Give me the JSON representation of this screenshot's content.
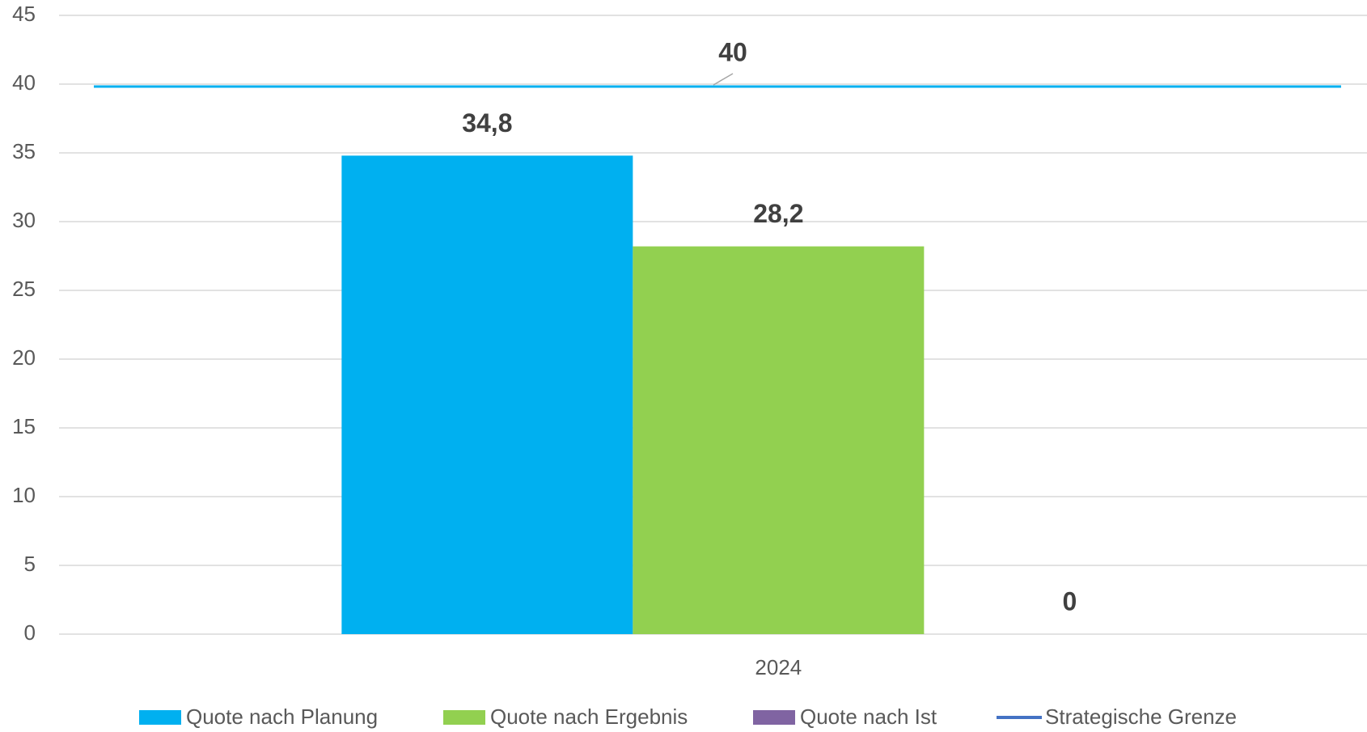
{
  "chart_data": {
    "type": "bar",
    "categories": [
      "2024"
    ],
    "series": [
      {
        "name": "Quote nach Planung",
        "color": "#00b0f0",
        "values": [
          34.8
        ],
        "value_labels": [
          "34,8"
        ]
      },
      {
        "name": "Quote nach Ergebnis",
        "color": "#92d050",
        "values": [
          28.2
        ],
        "value_labels": [
          "28,2"
        ]
      },
      {
        "name": "Quote nach Ist",
        "color": "#8064a2",
        "values": [
          0
        ]
      },
      {
        "name": "Strategische Grenze",
        "color": "#00b0f0",
        "type": "line",
        "values": [
          40
        ]
      }
    ],
    "ylim": [
      0,
      45
    ],
    "yticks": [
      0,
      5,
      10,
      15,
      20,
      25,
      30,
      35,
      40,
      45
    ],
    "grid": true,
    "legend": "bottom"
  }
}
